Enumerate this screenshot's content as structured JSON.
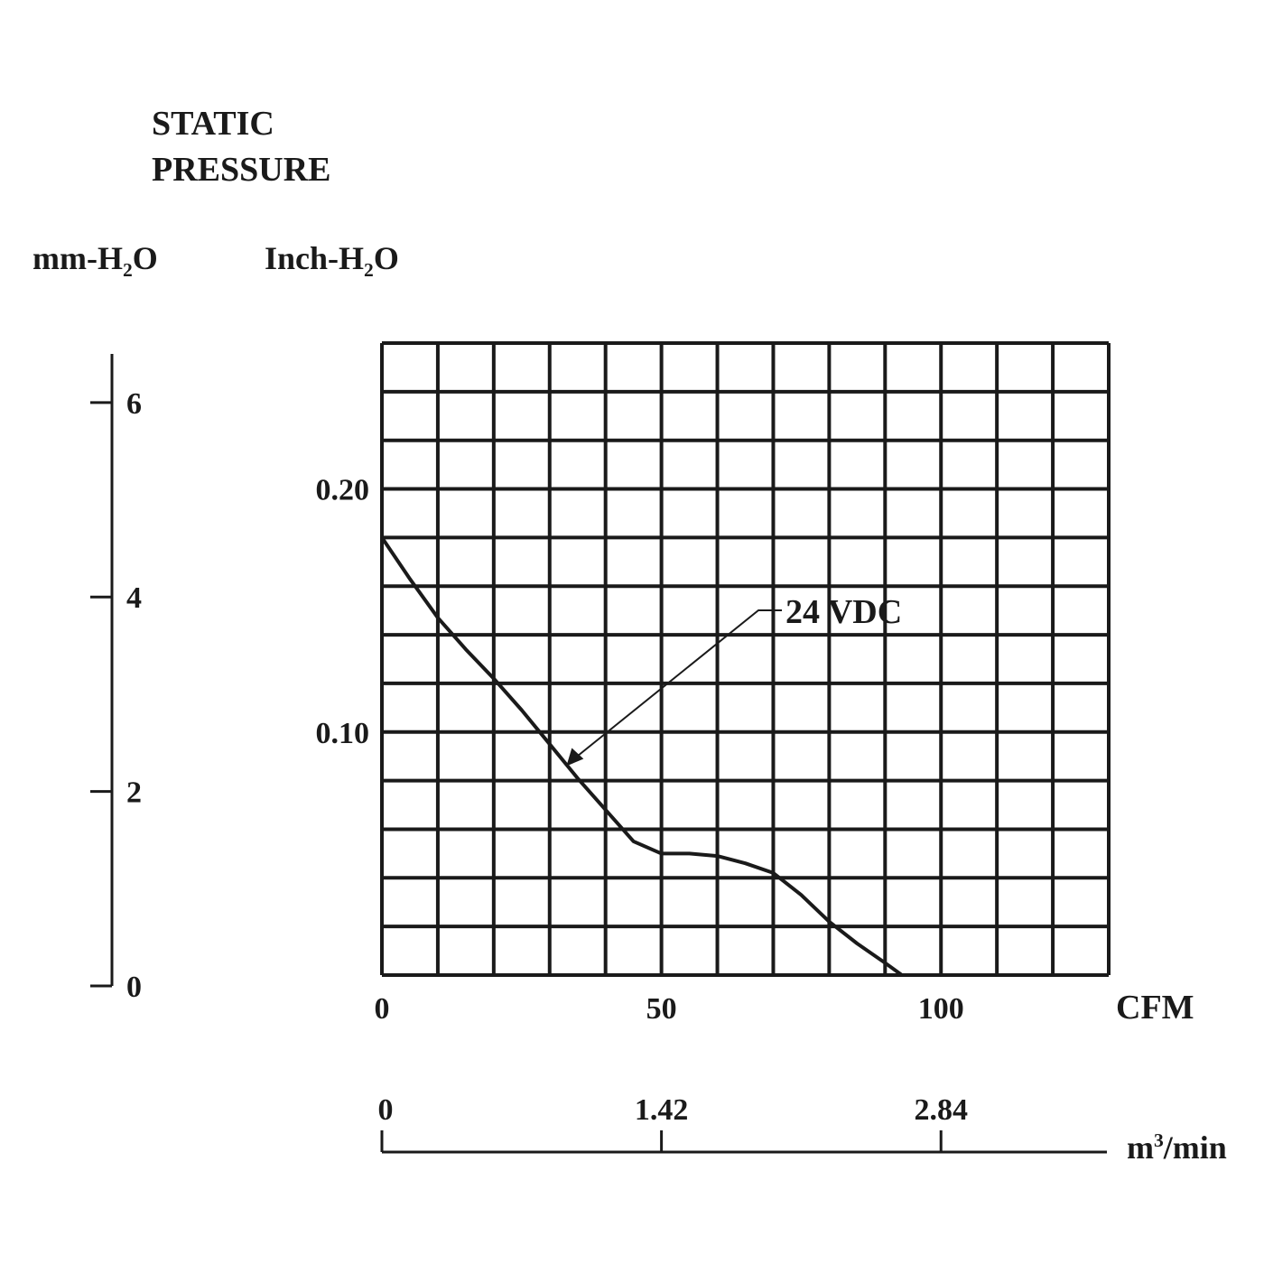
{
  "chart_data": {
    "type": "line",
    "title_line1": "STATIC",
    "title_line2": "PRESSURE",
    "left_axis": {
      "label_prefix": "mm-H",
      "label_sub": "2",
      "label_suffix": "O",
      "ylim": [
        0,
        6.5
      ],
      "ticks": [
        "0",
        "2",
        "4",
        "6"
      ]
    },
    "y_axis": {
      "label_prefix": "Inch-H",
      "label_sub": "2",
      "label_suffix": "O",
      "ylim": [
        0,
        0.26
      ],
      "ticks": [
        "0.20",
        "0.10"
      ]
    },
    "x_axis": {
      "label": "CFM",
      "xlim": [
        0,
        130
      ],
      "ticks": [
        "0",
        "50",
        "100"
      ]
    },
    "x2_axis": {
      "label_prefix": "m",
      "label_sup": "3",
      "label_suffix": "/min",
      "ticks": [
        "0",
        "1.42",
        "2.84"
      ]
    },
    "grid": true,
    "series": [
      {
        "name": "24 VDC",
        "x": [
          0,
          5,
          10,
          15,
          20,
          25,
          30,
          35,
          40,
          45,
          50,
          55,
          60,
          65,
          70,
          75,
          80,
          85,
          90,
          93
        ],
        "y": [
          0.18,
          0.163,
          0.147,
          0.134,
          0.122,
          0.109,
          0.095,
          0.081,
          0.068,
          0.055,
          0.05,
          0.05,
          0.049,
          0.046,
          0.042,
          0.033,
          0.022,
          0.013,
          0.005,
          0.0
        ]
      }
    ],
    "annotation": "24 VDC"
  }
}
